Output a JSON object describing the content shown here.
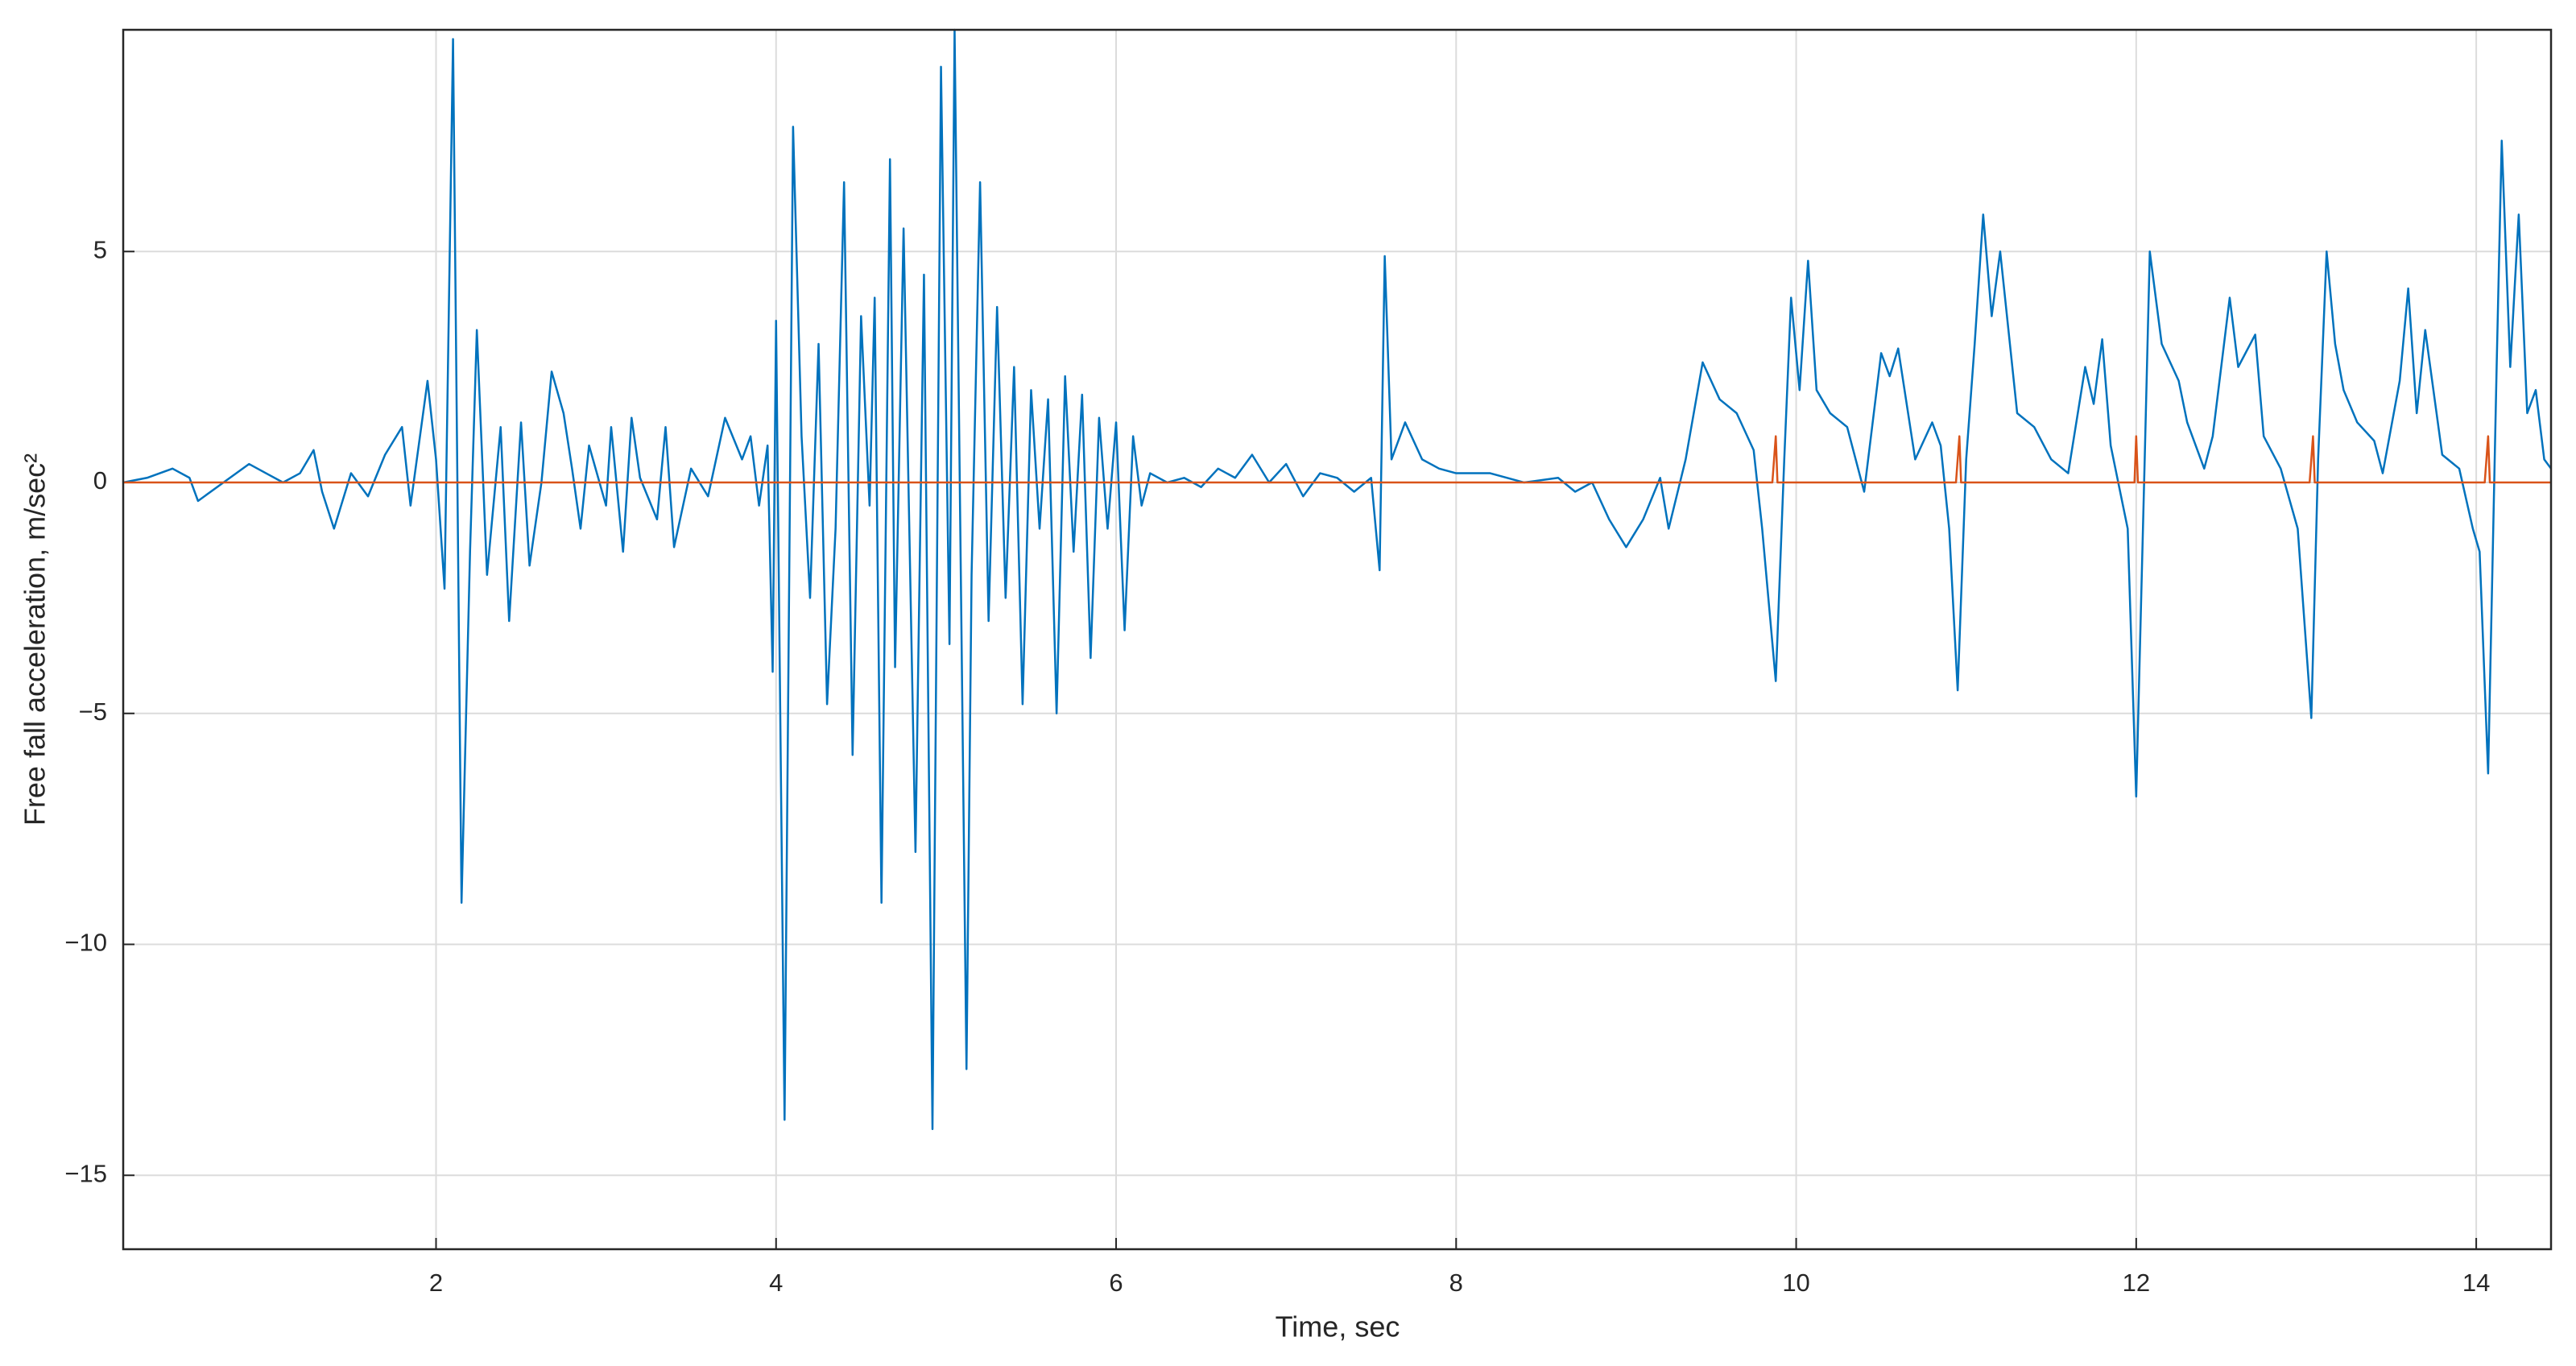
{
  "chart_data": {
    "type": "line",
    "x_label": "Time, sec",
    "y_label": "Free fall acceleration, m/sec²",
    "xlim": [
      0.16,
      14.44
    ],
    "ylim": [
      -16.6,
      9.8
    ],
    "xticks": [
      2,
      4,
      6,
      8,
      10,
      12,
      14
    ],
    "yticks": [
      {
        "value": -15,
        "label": "−15"
      },
      {
        "value": -10,
        "label": "−10"
      },
      {
        "value": -5,
        "label": "−5"
      },
      0,
      5
    ],
    "grid": true,
    "series": [
      {
        "color": "#0072bd",
        "x": [
          0.16,
          0.3,
          0.45,
          0.55,
          0.6,
          0.75,
          0.9,
          1.0,
          1.1,
          1.2,
          1.28,
          1.33,
          1.4,
          1.5,
          1.6,
          1.7,
          1.8,
          1.85,
          1.95,
          2.0,
          2.05,
          2.1,
          2.15,
          2.2,
          2.24,
          2.3,
          2.38,
          2.43,
          2.5,
          2.55,
          2.62,
          2.68,
          2.75,
          2.8,
          2.85,
          2.9,
          3.0,
          3.03,
          3.1,
          3.15,
          3.2,
          3.3,
          3.35,
          3.4,
          3.5,
          3.6,
          3.7,
          3.8,
          3.85,
          3.9,
          3.95,
          3.98,
          4.0,
          4.05,
          4.1,
          4.15,
          4.2,
          4.25,
          4.3,
          4.35,
          4.4,
          4.45,
          4.5,
          4.55,
          4.58,
          4.62,
          4.67,
          4.7,
          4.75,
          4.82,
          4.87,
          4.92,
          4.97,
          5.02,
          5.05,
          5.12,
          5.15,
          5.2,
          5.25,
          5.3,
          5.35,
          5.4,
          5.45,
          5.5,
          5.55,
          5.6,
          5.65,
          5.7,
          5.75,
          5.8,
          5.85,
          5.9,
          5.95,
          6.0,
          6.05,
          6.1,
          6.15,
          6.2,
          6.3,
          6.4,
          6.5,
          6.6,
          6.7,
          6.8,
          6.9,
          7.0,
          7.1,
          7.2,
          7.3,
          7.4,
          7.5,
          7.55,
          7.58,
          7.62,
          7.7,
          7.8,
          7.9,
          8.0,
          8.2,
          8.4,
          8.6,
          8.7,
          8.8,
          8.9,
          9.0,
          9.1,
          9.2,
          9.25,
          9.35,
          9.45,
          9.55,
          9.65,
          9.75,
          9.8,
          9.88,
          9.93,
          9.97,
          10.02,
          10.07,
          10.12,
          10.2,
          10.3,
          10.35,
          10.4,
          10.5,
          10.55,
          10.6,
          10.7,
          10.8,
          10.85,
          10.9,
          10.95,
          11.0,
          11.05,
          11.1,
          11.15,
          11.2,
          11.3,
          11.4,
          11.5,
          11.6,
          11.7,
          11.75,
          11.8,
          11.85,
          11.95,
          12.0,
          12.05,
          12.08,
          12.15,
          12.25,
          12.3,
          12.4,
          12.45,
          12.55,
          12.6,
          12.7,
          12.75,
          12.85,
          12.95,
          13.03,
          13.07,
          13.12,
          13.17,
          13.22,
          13.3,
          13.4,
          13.45,
          13.55,
          13.6,
          13.65,
          13.7,
          13.8,
          13.9,
          13.98,
          14.02,
          14.07,
          14.12,
          14.15,
          14.2,
          14.25,
          14.3,
          14.35,
          14.4,
          14.44
        ],
        "values": [
          0,
          0.1,
          0.3,
          0.1,
          -0.4,
          0,
          0.4,
          0.2,
          0,
          0.2,
          0.7,
          -0.2,
          -1.0,
          0.2,
          -0.3,
          0.6,
          1.2,
          -0.5,
          2.2,
          0.5,
          -2.3,
          9.6,
          -9.1,
          -1.5,
          3.3,
          -2.0,
          1.2,
          -3.0,
          1.3,
          -1.8,
          0,
          2.4,
          1.5,
          0.3,
          -1.0,
          0.8,
          -0.5,
          1.2,
          -1.5,
          1.4,
          0.1,
          -0.8,
          1.2,
          -1.4,
          0.3,
          -0.3,
          1.4,
          0.5,
          1.0,
          -0.5,
          0.8,
          -4.1,
          3.5,
          -13.8,
          7.7,
          1.0,
          -2.5,
          3.0,
          -4.8,
          -1.0,
          6.5,
          -5.9,
          3.6,
          -0.5,
          4.0,
          -9.1,
          7.0,
          -4.0,
          5.5,
          -8.0,
          4.5,
          -14.0,
          9.0,
          -3.5,
          9.8,
          -12.7,
          -2.0,
          6.5,
          -3.0,
          3.8,
          -2.5,
          2.5,
          -4.8,
          2.0,
          -1.0,
          1.8,
          -5.0,
          2.3,
          -1.5,
          1.9,
          -3.8,
          1.4,
          -1.0,
          1.3,
          -3.2,
          1.0,
          -0.5,
          0.2,
          0,
          0.1,
          -0.1,
          0.3,
          0.1,
          0.6,
          0,
          0.4,
          -0.3,
          0.2,
          0.1,
          -0.2,
          0.1,
          -1.9,
          4.9,
          0.5,
          1.3,
          0.5,
          0.3,
          0.2,
          0.2,
          0,
          0.1,
          -0.2,
          0,
          -0.8,
          -1.4,
          -0.8,
          0.1,
          -1.0,
          0.5,
          2.6,
          1.8,
          1.5,
          0.7,
          -1.0,
          -4.3,
          0.5,
          4.0,
          2.0,
          4.8,
          2.0,
          1.5,
          1.2,
          0.5,
          -0.2,
          2.8,
          2.3,
          2.9,
          0.5,
          1.3,
          0.8,
          -1.0,
          -4.5,
          0.5,
          3.0,
          5.8,
          3.6,
          5.0,
          1.5,
          1.2,
          0.5,
          0.2,
          2.5,
          1.7,
          3.1,
          0.8,
          -1.0,
          -6.8,
          0.5,
          5.0,
          3.0,
          2.2,
          1.3,
          0.3,
          1.0,
          4.0,
          2.5,
          3.2,
          1.0,
          0.3,
          -1.0,
          -5.1,
          0.5,
          5.0,
          3.0,
          2.0,
          1.3,
          0.9,
          0.2,
          2.2,
          4.2,
          1.5,
          3.3,
          0.6,
          0.3,
          -1.0,
          -1.5,
          -6.3,
          2.5,
          7.4,
          2.5,
          5.8,
          1.5,
          2.0,
          0.5,
          0.3
        ]
      },
      {
        "color": "#d95319",
        "x": [
          0.16,
          9.86,
          9.88,
          9.89,
          10.94,
          10.96,
          10.97,
          11.99,
          12.0,
          12.01,
          13.02,
          13.04,
          13.05,
          14.05,
          14.07,
          14.08,
          14.44
        ],
        "values": [
          0,
          0,
          1,
          0,
          0,
          1,
          0,
          0,
          1,
          0,
          0,
          1,
          0,
          0,
          1,
          0,
          0
        ]
      }
    ]
  }
}
